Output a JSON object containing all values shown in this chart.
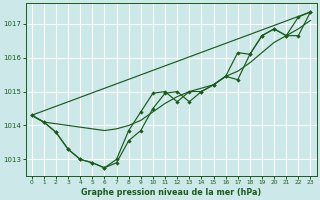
{
  "xlabel": "Graphe pression niveau de la mer (hPa)",
  "bg_color": "#cce8e8",
  "grid_color": "#b8d8d8",
  "line_color": "#1a5c1a",
  "x_values": [
    0,
    1,
    2,
    3,
    4,
    5,
    6,
    7,
    8,
    9,
    10,
    11,
    12,
    13,
    14,
    15,
    16,
    17,
    18,
    19,
    20,
    21,
    22,
    23
  ],
  "series_dip1": [
    1014.3,
    1014.1,
    1013.8,
    1013.3,
    1013.0,
    1012.9,
    1012.75,
    1013.0,
    1013.85,
    1014.4,
    1014.95,
    1015.0,
    1014.7,
    1015.0,
    1015.0,
    1015.2,
    1015.45,
    1016.15,
    1016.1,
    1016.65,
    1016.85,
    1016.65,
    1017.2,
    1017.35
  ],
  "series_dip2": [
    1014.3,
    1014.1,
    1013.8,
    1013.3,
    1013.0,
    1012.9,
    1012.75,
    1012.9,
    1013.55,
    1013.85,
    1014.5,
    1014.95,
    1015.0,
    1014.7,
    1015.0,
    1015.2,
    1015.45,
    1015.35,
    1016.1,
    1016.65,
    1016.85,
    1016.65,
    1016.65,
    1017.35
  ],
  "series_smooth": [
    1014.3,
    1014.1,
    1014.05,
    1014.0,
    1013.95,
    1013.9,
    1013.85,
    1013.9,
    1014.0,
    1014.15,
    1014.4,
    1014.65,
    1014.85,
    1015.0,
    1015.1,
    1015.2,
    1015.45,
    1015.6,
    1015.85,
    1016.15,
    1016.45,
    1016.65,
    1016.85,
    1017.1
  ],
  "series_line_x": [
    0,
    23
  ],
  "series_line_y": [
    1014.3,
    1017.35
  ],
  "ylim": [
    1012.5,
    1017.6
  ],
  "xlim": [
    -0.5,
    23.5
  ],
  "yticks": [
    1013,
    1014,
    1015,
    1016,
    1017
  ],
  "xticks": [
    0,
    1,
    2,
    3,
    4,
    5,
    6,
    7,
    8,
    9,
    10,
    11,
    12,
    13,
    14,
    15,
    16,
    17,
    18,
    19,
    20,
    21,
    22,
    23
  ]
}
